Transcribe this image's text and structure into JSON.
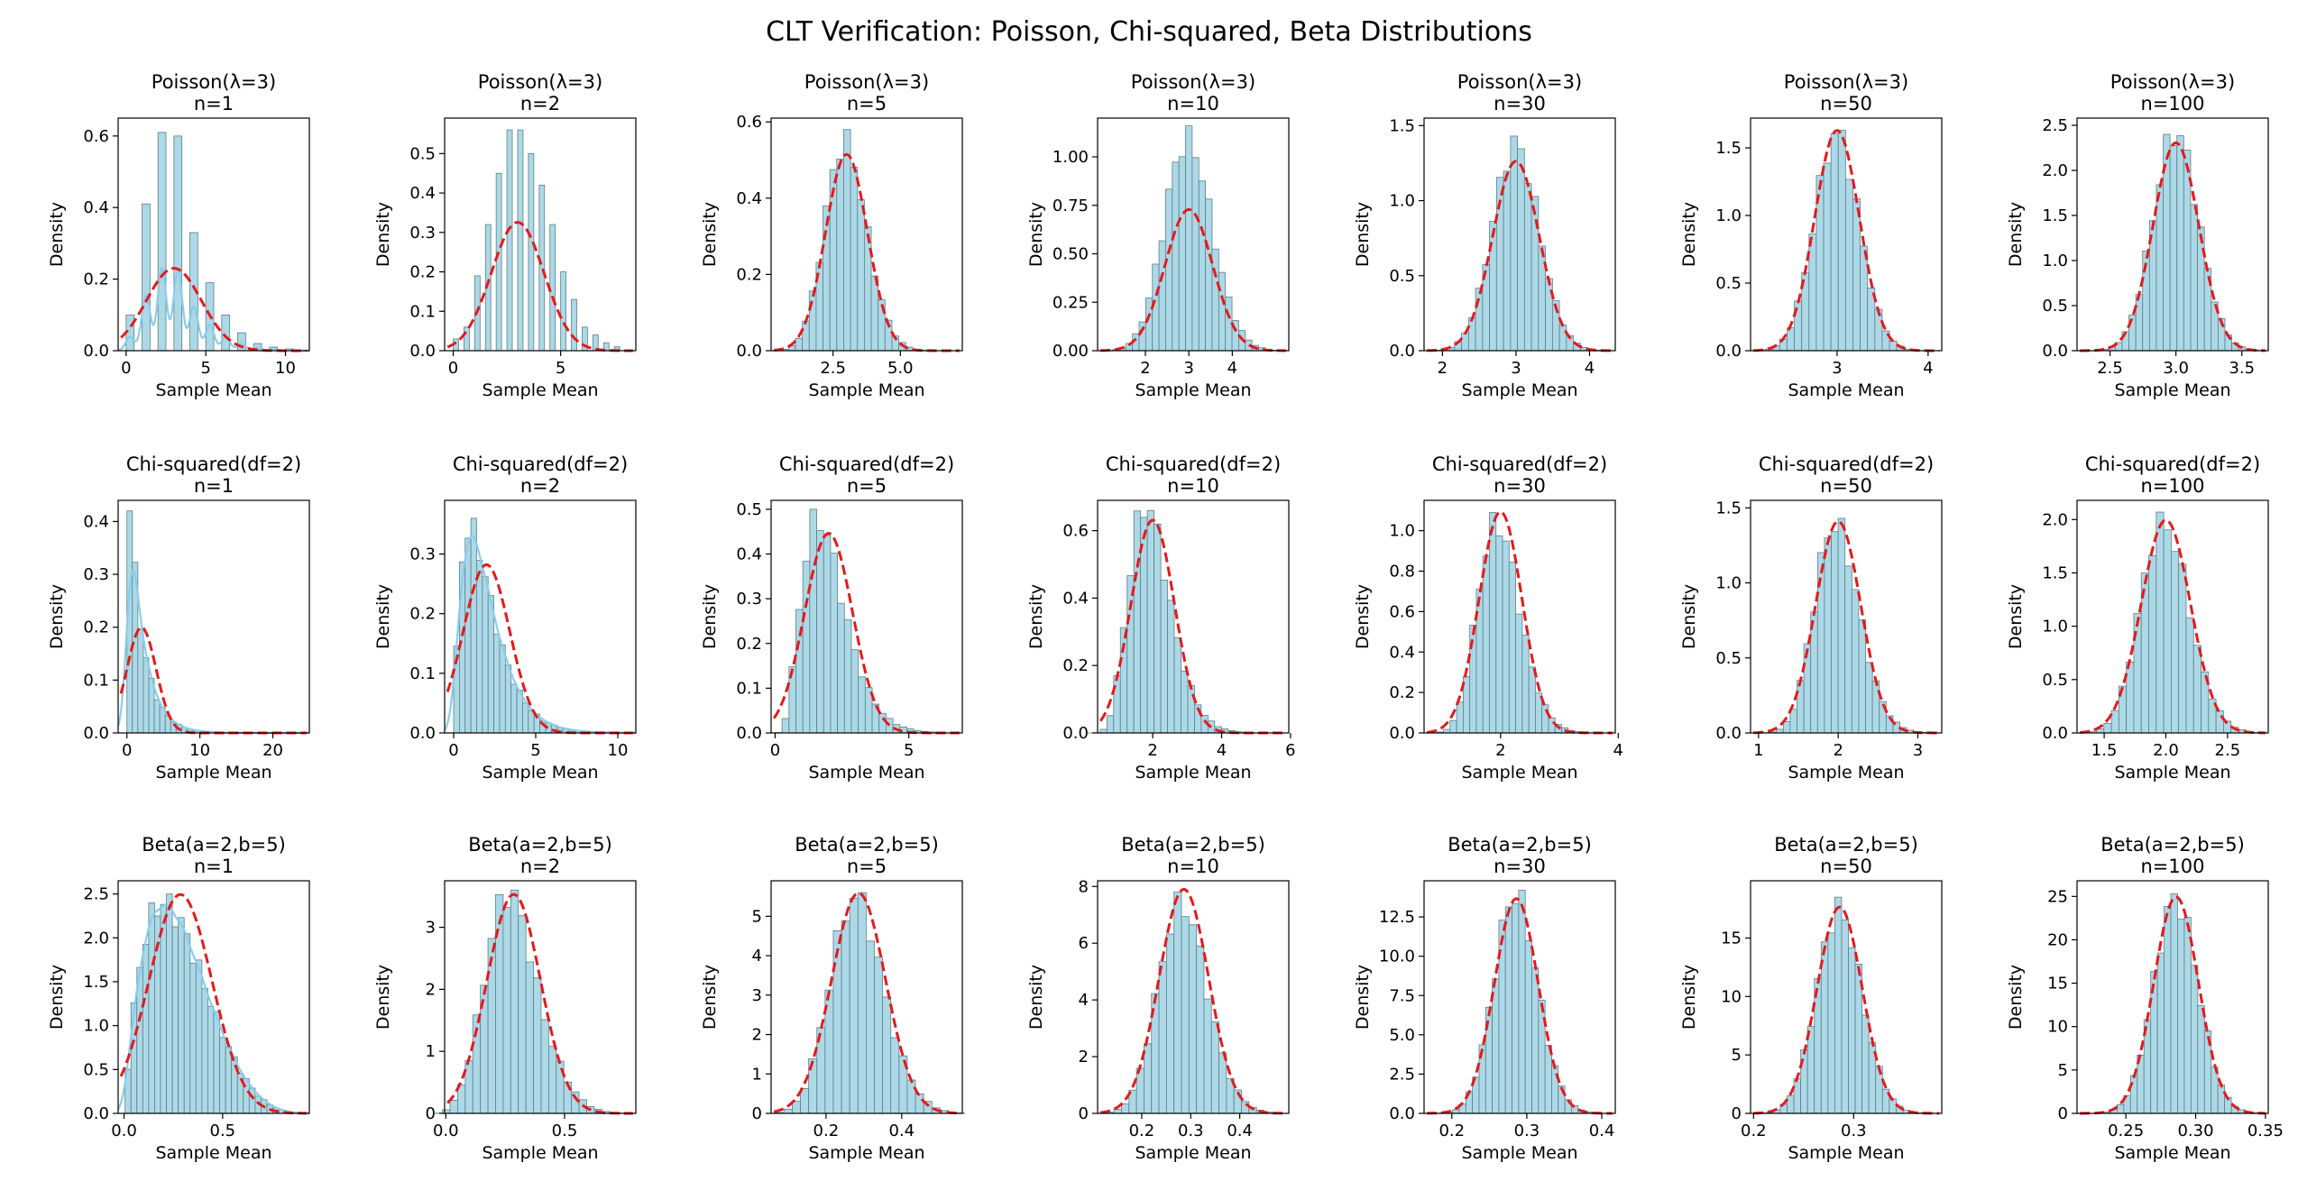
{
  "figure": {
    "title": "CLT Verification: Poisson, Chi-squared, Beta Distributions",
    "colors": {
      "bar_fill": "#add8e6",
      "bar_edge": "#5b7f8c",
      "kde_line": "#87ceeb",
      "normal_curve": "#e31a1c",
      "axes": "#000000"
    }
  },
  "chart_data": [
    {
      "type": "bar",
      "row": 0,
      "col": 0,
      "title_line1": "Poisson(λ=3)",
      "title_line2": "n=1",
      "xlabel": "Sample Mean",
      "ylabel": "Density",
      "xlim": [
        -0.5,
        11.5
      ],
      "ylim": [
        0,
        0.65
      ],
      "xticks": [
        0,
        5,
        10
      ],
      "xtick_labels": [
        "0",
        "5",
        "10"
      ],
      "yticks": [
        0,
        0.2,
        0.4,
        0.6
      ],
      "ytick_labels": [
        "0.0",
        "0.2",
        "0.4",
        "0.6"
      ],
      "dist": "discrete",
      "mu": 3,
      "sigma": 1.732,
      "skew": 0.4,
      "bins": {
        "start": 0,
        "width": 0.5,
        "values": [
          0.1,
          0,
          0.41,
          0,
          0.61,
          0,
          0.6,
          0,
          0.33,
          0,
          0.19,
          0,
          0.1,
          0,
          0.05,
          0,
          0.02,
          0,
          0.01,
          0,
          0.005
        ]
      },
      "normal": {
        "mu": 3,
        "sigma": 1.732
      },
      "kde": true
    },
    {
      "type": "bar",
      "row": 0,
      "col": 1,
      "title_line1": "Poisson(λ=3)",
      "title_line2": "n=2",
      "xlabel": "Sample Mean",
      "ylabel": "Density",
      "xlim": [
        -0.4,
        8.5
      ],
      "ylim": [
        0,
        0.59
      ],
      "xticks": [
        0,
        5
      ],
      "xtick_labels": [
        "0",
        "5"
      ],
      "yticks": [
        0,
        0.1,
        0.2,
        0.3,
        0.4,
        0.5
      ],
      "ytick_labels": [
        "0.0",
        "0.1",
        "0.2",
        "0.3",
        "0.4",
        "0.5"
      ],
      "dist": "discrete",
      "mu": 3,
      "sigma": 1.225,
      "skew": 0.29,
      "bins": {
        "start": 0,
        "width": 0.25,
        "values": [
          0.03,
          0,
          0.06,
          0,
          0.19,
          0,
          0.32,
          0,
          0.45,
          0,
          0.56,
          0,
          0.56,
          0,
          0.5,
          0,
          0.42,
          0,
          0.32,
          0,
          0.2,
          0,
          0.13,
          0,
          0.06,
          0,
          0.04,
          0,
          0.02,
          0,
          0.01
        ]
      },
      "normal": {
        "mu": 3,
        "sigma": 1.225
      },
      "kde": false
    },
    {
      "type": "bar",
      "row": 0,
      "col": 2,
      "title_line1": "Poisson(λ=3)",
      "title_line2": "n=5",
      "xlabel": "Sample Mean",
      "ylabel": "Density",
      "xlim": [
        0.2,
        7.3
      ],
      "ylim": [
        0,
        0.61
      ],
      "xticks": [
        2.5,
        5
      ],
      "xtick_labels": [
        "2.5",
        "5.0"
      ],
      "yticks": [
        0,
        0.2,
        0.4,
        0.6
      ],
      "ytick_labels": [
        "0.0",
        "0.2",
        "0.4",
        "0.6"
      ],
      "dist": "continuous",
      "mu": 3,
      "sigma": 0.775,
      "skew": 0.18,
      "bins": {
        "count": 22,
        "peak": 0.58
      },
      "normal": {
        "mu": 3,
        "sigma": 0.775
      },
      "kde": false
    },
    {
      "type": "bar",
      "row": 0,
      "col": 3,
      "title_line1": "Poisson(λ=3)",
      "title_line2": "n=10",
      "xlabel": "Sample Mean",
      "ylabel": "Density",
      "xlim": [
        0.9,
        5.3
      ],
      "ylim": [
        0,
        1.2
      ],
      "xticks": [
        2,
        3,
        4
      ],
      "xtick_labels": [
        "2",
        "3",
        "4"
      ],
      "yticks": [
        0,
        0.25,
        0.5,
        0.75,
        1.0
      ],
      "ytick_labels": [
        "0.00",
        "0.25",
        "0.50",
        "0.75",
        "1.00"
      ],
      "dist": "continuous",
      "mu": 3,
      "sigma": 0.548,
      "skew": 0.13,
      "bins": {
        "count": 26,
        "peak": 1.16
      },
      "normal": {
        "mu": 3,
        "sigma": 0.548
      },
      "kde": false
    },
    {
      "type": "bar",
      "row": 0,
      "col": 4,
      "title_line1": "Poisson(λ=3)",
      "title_line2": "n=30",
      "xlabel": "Sample Mean",
      "ylabel": "Density",
      "xlim": [
        1.75,
        4.35
      ],
      "ylim": [
        0,
        1.55
      ],
      "xticks": [
        2,
        3,
        4
      ],
      "xtick_labels": [
        "2",
        "3",
        "4"
      ],
      "yticks": [
        0,
        0.5,
        1.0,
        1.5
      ],
      "ytick_labels": [
        "0.0",
        "0.5",
        "1.0",
        "1.5"
      ],
      "dist": "continuous",
      "mu": 3,
      "sigma": 0.316,
      "skew": 0.06,
      "bins": {
        "count": 24,
        "peak": 1.43
      },
      "normal": {
        "mu": 3,
        "sigma": 0.316
      },
      "kde": false
    },
    {
      "type": "bar",
      "row": 0,
      "col": 5,
      "title_line1": "Poisson(λ=3)",
      "title_line2": "n=50",
      "xlabel": "Sample Mean",
      "ylabel": "Density",
      "xlim": [
        2.05,
        4.15
      ],
      "ylim": [
        0,
        1.72
      ],
      "xticks": [
        3,
        4
      ],
      "xtick_labels": [
        "3",
        "4"
      ],
      "yticks": [
        0,
        0.5,
        1.0,
        1.5
      ],
      "ytick_labels": [
        "0.0",
        "0.5",
        "1.0",
        "1.5"
      ],
      "dist": "continuous",
      "mu": 3,
      "sigma": 0.245,
      "skew": 0.05,
      "bins": {
        "count": 22,
        "peak": 1.63
      },
      "normal": {
        "mu": 3,
        "sigma": 0.245
      },
      "kde": false
    },
    {
      "type": "bar",
      "row": 0,
      "col": 6,
      "title_line1": "Poisson(λ=3)",
      "title_line2": "n=100",
      "xlabel": "Sample Mean",
      "ylabel": "Density",
      "xlim": [
        2.25,
        3.7
      ],
      "ylim": [
        0,
        2.58
      ],
      "xticks": [
        2.5,
        3.0,
        3.5
      ],
      "xtick_labels": [
        "2.5",
        "3.0",
        "3.5"
      ],
      "yticks": [
        0,
        0.5,
        1.0,
        1.5,
        2.0,
        2.5
      ],
      "ytick_labels": [
        "0.0",
        "0.5",
        "1.0",
        "1.5",
        "2.0",
        "2.5"
      ],
      "dist": "continuous",
      "mu": 3,
      "sigma": 0.173,
      "skew": 0.04,
      "bins": {
        "count": 24,
        "peak": 2.4
      },
      "normal": {
        "mu": 3,
        "sigma": 0.173
      },
      "kde": false
    },
    {
      "type": "bar",
      "row": 1,
      "col": 0,
      "title_line1": "Chi-squared(df=2)",
      "title_line2": "n=1",
      "xlabel": "Sample Mean",
      "ylabel": "Density",
      "xlim": [
        -1.2,
        25
      ],
      "ylim": [
        0,
        0.44
      ],
      "xticks": [
        0,
        10,
        20
      ],
      "xtick_labels": [
        "0",
        "10",
        "20"
      ],
      "yticks": [
        0,
        0.1,
        0.2,
        0.3,
        0.4
      ],
      "ytick_labels": [
        "0.0",
        "0.1",
        "0.2",
        "0.3",
        "0.4"
      ],
      "dist": "expo",
      "mu": 2,
      "sigma": 2,
      "skew": 2,
      "bins": {
        "start": 0,
        "width": 0.75,
        "count": 32,
        "peak": 0.42
      },
      "normal": {
        "mu": 2,
        "sigma": 2
      },
      "kde": true
    },
    {
      "type": "bar",
      "row": 1,
      "col": 1,
      "title_line1": "Chi-squared(df=2)",
      "title_line2": "n=2",
      "xlabel": "Sample Mean",
      "ylabel": "Density",
      "xlim": [
        -0.55,
        11.1
      ],
      "ylim": [
        0,
        0.39
      ],
      "xticks": [
        0,
        5,
        10
      ],
      "xtick_labels": [
        "0",
        "5",
        "10"
      ],
      "yticks": [
        0,
        0.1,
        0.2,
        0.3
      ],
      "ytick_labels": [
        "0.0",
        "0.1",
        "0.2",
        "0.3"
      ],
      "dist": "gamma",
      "shape": 2,
      "mu": 2,
      "sigma": 1.414,
      "skew": 1.41,
      "bins": {
        "start": 0,
        "width": 0.35,
        "count": 31,
        "peak": 0.36
      },
      "normal": {
        "mu": 2,
        "sigma": 1.414
      },
      "kde": true
    },
    {
      "type": "bar",
      "row": 1,
      "col": 2,
      "title_line1": "Chi-squared(df=2)",
      "title_line2": "n=5",
      "xlabel": "Sample Mean",
      "ylabel": "Density",
      "xlim": [
        -0.15,
        7.0
      ],
      "ylim": [
        0,
        0.52
      ],
      "xticks": [
        0,
        5
      ],
      "xtick_labels": [
        "0",
        "5"
      ],
      "yticks": [
        0,
        0.1,
        0.2,
        0.3,
        0.4,
        0.5
      ],
      "ytick_labels": [
        "0.0",
        "0.1",
        "0.2",
        "0.3",
        "0.4",
        "0.5"
      ],
      "dist": "gamma",
      "shape": 5,
      "mu": 2,
      "sigma": 0.894,
      "skew": 0.89,
      "bins": {
        "count": 24,
        "peak": 0.5
      },
      "normal": {
        "mu": 2,
        "sigma": 0.894
      },
      "kde": false
    },
    {
      "type": "bar",
      "row": 1,
      "col": 3,
      "title_line1": "Chi-squared(df=2)",
      "title_line2": "n=10",
      "xlabel": "Sample Mean",
      "ylabel": "Density",
      "xlim": [
        0.4,
        5.95
      ],
      "ylim": [
        0,
        0.69
      ],
      "xticks": [
        2,
        4,
        6
      ],
      "xtick_labels": [
        "2",
        "4",
        "6"
      ],
      "yticks": [
        0,
        0.2,
        0.4,
        0.6
      ],
      "ytick_labels": [
        "0.0",
        "0.2",
        "0.4",
        "0.6"
      ],
      "dist": "gamma",
      "shape": 10,
      "mu": 2,
      "sigma": 0.632,
      "skew": 0.63,
      "bins": {
        "count": 24,
        "peak": 0.66
      },
      "normal": {
        "mu": 2,
        "sigma": 0.632
      },
      "kde": false
    },
    {
      "type": "bar",
      "row": 1,
      "col": 4,
      "title_line1": "Chi-squared(df=2)",
      "title_line2": "n=30",
      "xlabel": "Sample Mean",
      "ylabel": "Density",
      "xlim": [
        0.7,
        3.95
      ],
      "ylim": [
        0,
        1.15
      ],
      "xticks": [
        2,
        4
      ],
      "xtick_labels": [
        "2",
        "4"
      ],
      "yticks": [
        0,
        0.2,
        0.4,
        0.6,
        0.8,
        1.0
      ],
      "ytick_labels": [
        "0.0",
        "0.2",
        "0.4",
        "0.6",
        "0.8",
        "1.0"
      ],
      "dist": "gamma",
      "shape": 30,
      "mu": 2,
      "sigma": 0.365,
      "skew": 0.37,
      "bins": {
        "count": 24,
        "peak": 1.09
      },
      "normal": {
        "mu": 2,
        "sigma": 0.365
      },
      "kde": false
    },
    {
      "type": "bar",
      "row": 1,
      "col": 5,
      "title_line1": "Chi-squared(df=2)",
      "title_line2": "n=50",
      "xlabel": "Sample Mean",
      "ylabel": "Density",
      "xlim": [
        0.9,
        3.3
      ],
      "ylim": [
        0,
        1.55
      ],
      "xticks": [
        1,
        2,
        3
      ],
      "xtick_labels": [
        "1",
        "2",
        "3"
      ],
      "yticks": [
        0,
        0.5,
        1.0,
        1.5
      ],
      "ytick_labels": [
        "0.0",
        "0.5",
        "1.0",
        "1.5"
      ],
      "dist": "gamma",
      "shape": 50,
      "mu": 2,
      "sigma": 0.283,
      "skew": 0.28,
      "bins": {
        "count": 24,
        "peak": 1.43
      },
      "normal": {
        "mu": 2,
        "sigma": 0.283
      },
      "kde": false
    },
    {
      "type": "bar",
      "row": 1,
      "col": 6,
      "title_line1": "Chi-squared(df=2)",
      "title_line2": "n=100",
      "xlabel": "Sample Mean",
      "ylabel": "Density",
      "xlim": [
        1.28,
        2.83
      ],
      "ylim": [
        0,
        2.18
      ],
      "xticks": [
        1.5,
        2.0,
        2.5
      ],
      "xtick_labels": [
        "1.5",
        "2.0",
        "2.5"
      ],
      "yticks": [
        0,
        0.5,
        1.0,
        1.5,
        2.0
      ],
      "ytick_labels": [
        "0.0",
        "0.5",
        "1.0",
        "1.5",
        "2.0"
      ],
      "dist": "gamma",
      "shape": 100,
      "mu": 2,
      "sigma": 0.2,
      "skew": 0.2,
      "bins": {
        "count": 24,
        "peak": 2.07
      },
      "normal": {
        "mu": 2,
        "sigma": 0.2
      },
      "kde": false
    },
    {
      "type": "bar",
      "row": 2,
      "col": 0,
      "title_line1": "Beta(a=2,b=5)",
      "title_line2": "n=1",
      "xlabel": "Sample Mean",
      "ylabel": "Density",
      "xlim": [
        -0.03,
        0.94
      ],
      "ylim": [
        0,
        2.65
      ],
      "xticks": [
        0,
        0.5
      ],
      "xtick_labels": [
        "0.0",
        "0.5"
      ],
      "yticks": [
        0,
        0.5,
        1.0,
        1.5,
        2.0,
        2.5
      ],
      "ytick_labels": [
        "0.0",
        "0.5",
        "1.0",
        "1.5",
        "2.0",
        "2.5"
      ],
      "dist": "beta",
      "mu": 0.286,
      "sigma": 0.16,
      "skew": 0.6,
      "bins": {
        "start": 0.005,
        "width": 0.03,
        "count": 30,
        "peak": 2.5
      },
      "normal": {
        "mu": 0.286,
        "sigma": 0.16
      },
      "kde": true
    },
    {
      "type": "bar",
      "row": 2,
      "col": 1,
      "title_line1": "Beta(a=2,b=5)",
      "title_line2": "n=2",
      "xlabel": "Sample Mean",
      "ylabel": "Density",
      "xlim": [
        -0.005,
        0.8
      ],
      "ylim": [
        0,
        3.75
      ],
      "xticks": [
        0,
        0.5
      ],
      "xtick_labels": [
        "0.0",
        "0.5"
      ],
      "yticks": [
        0,
        1,
        2,
        3
      ],
      "ytick_labels": [
        "0",
        "1",
        "2",
        "3"
      ],
      "dist": "continuous",
      "mu": 0.286,
      "sigma": 0.113,
      "skew": 0.42,
      "bins": {
        "count": 26,
        "peak": 3.6
      },
      "normal": {
        "mu": 0.286,
        "sigma": 0.113
      },
      "kde": false
    },
    {
      "type": "bar",
      "row": 2,
      "col": 2,
      "title_line1": "Beta(a=2,b=5)",
      "title_line2": "n=5",
      "xlabel": "Sample Mean",
      "ylabel": "Density",
      "xlim": [
        0.055,
        0.56
      ],
      "ylim": [
        0,
        5.9
      ],
      "xticks": [
        0.2,
        0.4
      ],
      "xtick_labels": [
        "0.2",
        "0.4"
      ],
      "yticks": [
        0,
        1,
        2,
        3,
        4,
        5
      ],
      "ytick_labels": [
        "0",
        "1",
        "2",
        "3",
        "4",
        "5"
      ],
      "dist": "continuous",
      "mu": 0.286,
      "sigma": 0.0714,
      "skew": 0.26,
      "bins": {
        "count": 24,
        "peak": 5.6
      },
      "normal": {
        "mu": 0.286,
        "sigma": 0.0714
      },
      "kde": false
    },
    {
      "type": "bar",
      "row": 2,
      "col": 3,
      "title_line1": "Beta(a=2,b=5)",
      "title_line2": "n=10",
      "xlabel": "Sample Mean",
      "ylabel": "Density",
      "xlim": [
        0.11,
        0.5
      ],
      "ylim": [
        0,
        8.2
      ],
      "xticks": [
        0.2,
        0.3,
        0.4
      ],
      "xtick_labels": [
        "0.2",
        "0.3",
        "0.4"
      ],
      "yticks": [
        0,
        2,
        4,
        6,
        8
      ],
      "ytick_labels": [
        "0",
        "2",
        "4",
        "6",
        "8"
      ],
      "dist": "continuous",
      "mu": 0.286,
      "sigma": 0.0505,
      "skew": 0.19,
      "bins": {
        "count": 24,
        "peak": 7.8
      },
      "normal": {
        "mu": 0.286,
        "sigma": 0.0505
      },
      "kde": false
    },
    {
      "type": "bar",
      "row": 2,
      "col": 4,
      "title_line1": "Beta(a=2,b=5)",
      "title_line2": "n=30",
      "xlabel": "Sample Mean",
      "ylabel": "Density",
      "xlim": [
        0.163,
        0.418
      ],
      "ylim": [
        0,
        14.8
      ],
      "xticks": [
        0.2,
        0.3,
        0.4
      ],
      "xtick_labels": [
        "0.2",
        "0.3",
        "0.4"
      ],
      "yticks": [
        0,
        2.5,
        5.0,
        7.5,
        10.0,
        12.5
      ],
      "ytick_labels": [
        "0.0",
        "2.5",
        "5.0",
        "7.5",
        "10.0",
        "12.5"
      ],
      "dist": "continuous",
      "mu": 0.286,
      "sigma": 0.0292,
      "skew": 0.1,
      "bins": {
        "count": 24,
        "peak": 14.2
      },
      "normal": {
        "mu": 0.286,
        "sigma": 0.0292
      },
      "kde": false
    },
    {
      "type": "bar",
      "row": 2,
      "col": 5,
      "title_line1": "Beta(a=2,b=5)",
      "title_line2": "n=50",
      "xlabel": "Sample Mean",
      "ylabel": "Density",
      "xlim": [
        0.197,
        0.388
      ],
      "ylim": [
        0,
        19.9
      ],
      "xticks": [
        0.2,
        0.3
      ],
      "xtick_labels": [
        "0.2",
        "0.3"
      ],
      "yticks": [
        0,
        5,
        10,
        15
      ],
      "ytick_labels": [
        "0",
        "5",
        "10",
        "15"
      ],
      "dist": "continuous",
      "mu": 0.286,
      "sigma": 0.0226,
      "skew": 0.08,
      "bins": {
        "count": 24,
        "peak": 18.5
      },
      "normal": {
        "mu": 0.286,
        "sigma": 0.0226
      },
      "kde": false
    },
    {
      "type": "bar",
      "row": 2,
      "col": 6,
      "title_line1": "Beta(a=2,b=5)",
      "title_line2": "n=100",
      "xlabel": "Sample Mean",
      "ylabel": "Density",
      "xlim": [
        0.215,
        0.352
      ],
      "ylim": [
        0,
        26.8
      ],
      "xticks": [
        0.25,
        0.3,
        0.35
      ],
      "xtick_labels": [
        "0.25",
        "0.30",
        "0.35"
      ],
      "yticks": [
        0,
        5,
        10,
        15,
        20,
        25
      ],
      "ytick_labels": [
        "0",
        "5",
        "10",
        "15",
        "20",
        "25"
      ],
      "dist": "continuous",
      "mu": 0.286,
      "sigma": 0.016,
      "skew": 0.06,
      "bins": {
        "count": 24,
        "peak": 25.3
      },
      "normal": {
        "mu": 0.286,
        "sigma": 0.016
      },
      "kde": false
    }
  ]
}
